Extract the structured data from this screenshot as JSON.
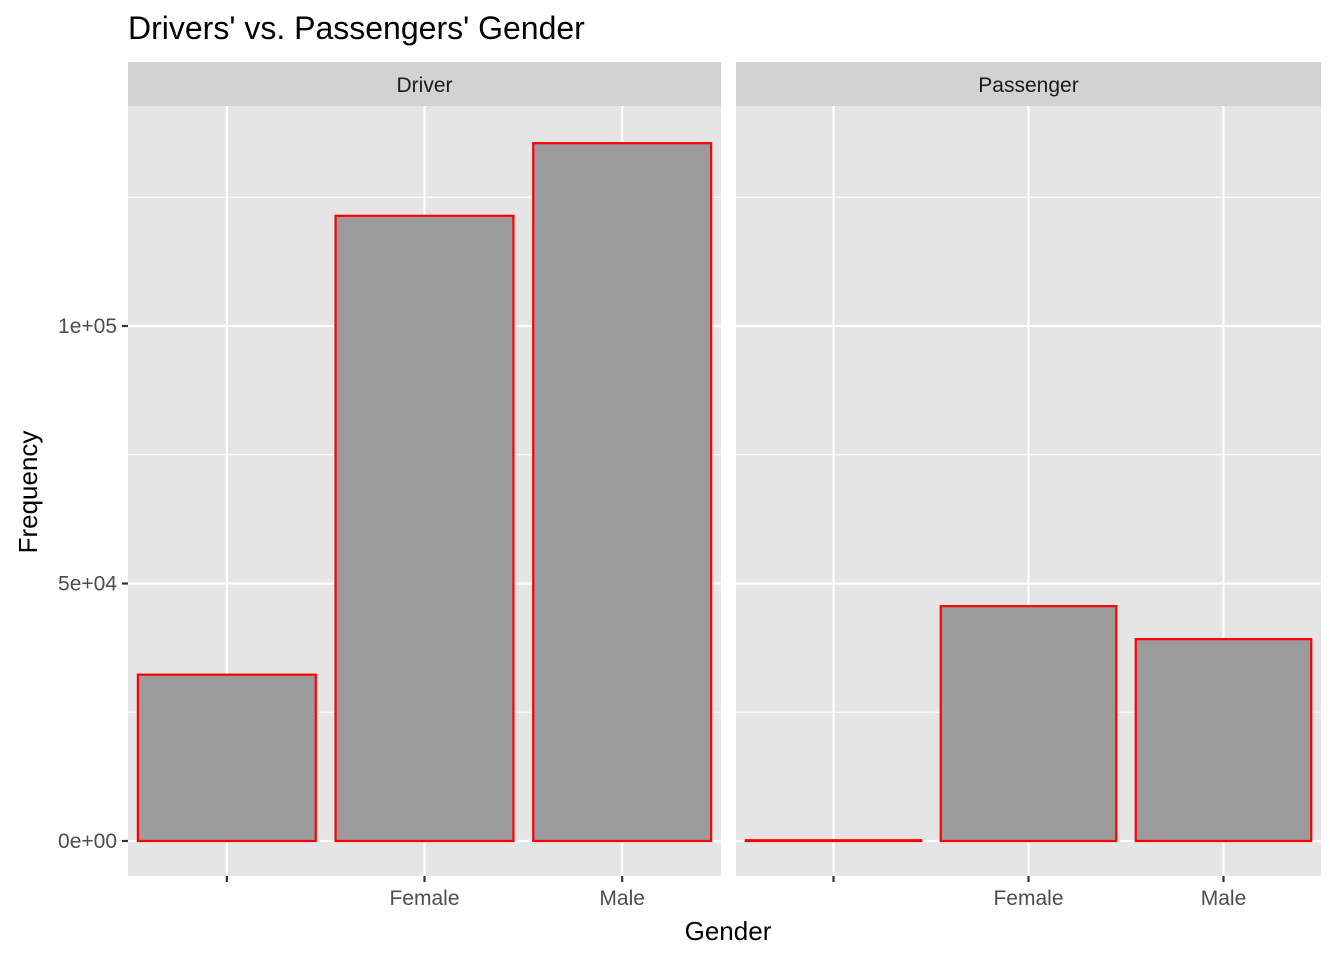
{
  "chart_data": {
    "type": "bar",
    "title": "Drivers' vs. Passengers' Gender",
    "xlabel": "Gender",
    "ylabel": "Frequency",
    "categories": [
      "",
      "Female",
      "Male"
    ],
    "ylim": [
      0,
      136000
    ],
    "yticks": [
      {
        "value": 0,
        "label": "0e+00"
      },
      {
        "value": 50000,
        "label": "5e+04"
      },
      {
        "value": 100000,
        "label": "1e+05"
      }
    ],
    "y_minor_ticks": [
      25000,
      75000,
      125000
    ],
    "grid": true,
    "facets": [
      {
        "name": "Driver",
        "values": [
          32300,
          121400,
          135500
        ]
      },
      {
        "name": "Passenger",
        "values": [
          150,
          45600,
          39200
        ]
      }
    ],
    "colors": {
      "bar_fill": "#9b9b9b",
      "bar_outline": "#ff0000",
      "panel_bg": "#e5e5e5",
      "strip_bg": "#d2d2d2",
      "grid": "#ffffff"
    }
  }
}
